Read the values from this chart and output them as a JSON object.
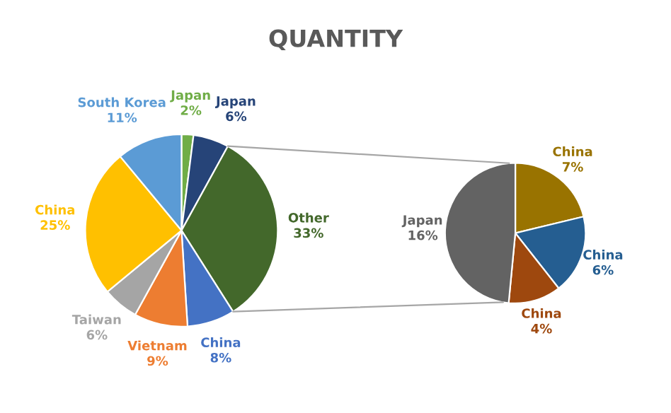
{
  "chart_data": [
    {
      "type": "pie",
      "title": "QUANTITY",
      "categories": [
        "Japan",
        "Japan",
        "Other",
        "China",
        "Vietnam",
        "Taiwan",
        "China",
        "South Korea"
      ],
      "values": [
        2,
        6,
        33,
        8,
        9,
        6,
        25,
        11
      ],
      "value_labels": [
        "2%",
        "6%",
        "33%",
        "8%",
        "9%",
        "6%",
        "25%",
        "11%"
      ],
      "colors": [
        "#70ad47",
        "#264478",
        "#43682b",
        "#4472c4",
        "#ed7d31",
        "#a5a5a5",
        "#ffc000",
        "#5b9bd5"
      ]
    },
    {
      "type": "pie",
      "categories": [
        "China",
        "China",
        "China",
        "Japan"
      ],
      "values": [
        7,
        6,
        4,
        16
      ],
      "value_labels": [
        "7%",
        "6%",
        "4%",
        "16%"
      ],
      "colors": [
        "#997300",
        "#255e91",
        "#9e480e",
        "#636363"
      ]
    }
  ]
}
